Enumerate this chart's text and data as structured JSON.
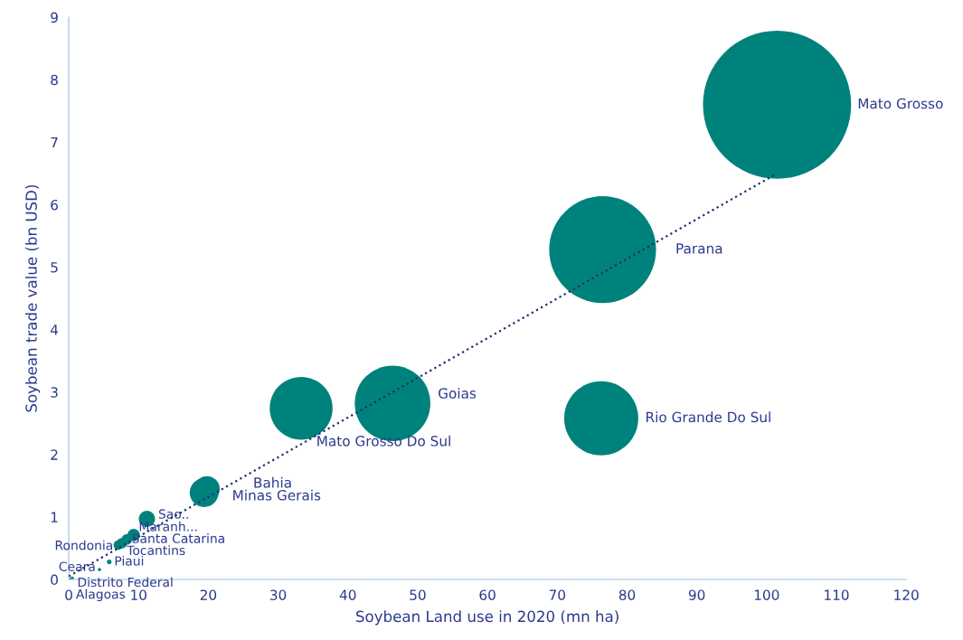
{
  "chart_data": {
    "type": "bubble",
    "xlabel": "Soybean Land use in 2020 (mn ha)",
    "ylabel": "Soybean trade value (bn USD)",
    "xlim": [
      0,
      120
    ],
    "xticks": [
      0,
      10,
      20,
      30,
      40,
      50,
      60,
      70,
      80,
      90,
      100,
      110,
      120
    ],
    "ylim": [
      0,
      9
    ],
    "yticks": [
      0,
      1,
      2,
      3,
      4,
      5,
      6,
      7,
      8,
      9
    ],
    "grid": false,
    "legend": false,
    "marker": "circle",
    "series": [
      {
        "name": "Mato Grosso",
        "color": "#00827c",
        "x": [
          101.5
        ],
        "values": [
          7.6
        ],
        "sizes": [
          1
        ]
      },
      {
        "name": "Parana",
        "color": "#00827c",
        "x": [
          76.5
        ],
        "values": [
          5.28
        ],
        "sizes": [
          0.52
        ]
      },
      {
        "name": "Rio Grande Do Sul",
        "color": "#00827c",
        "x": [
          76.3
        ],
        "values": [
          2.58
        ],
        "sizes": [
          0.25
        ]
      },
      {
        "name": "Goias",
        "color": "#00827c",
        "x": [
          46.4
        ],
        "values": [
          2.82
        ],
        "sizes": [
          0.26
        ]
      },
      {
        "name": "Mato Grosso Do Sul",
        "color": "#00827c",
        "x": [
          33.3
        ],
        "values": [
          2.74
        ],
        "sizes": [
          0.18
        ]
      },
      {
        "name": "Bahia",
        "color": "#00827c",
        "x": [
          19.4
        ],
        "values": [
          1.39
        ],
        "sizes": [
          0.038
        ]
      },
      {
        "name": "Minas Gerais",
        "color": "#00827c",
        "x": [
          19.8
        ],
        "values": [
          1.45
        ],
        "sizes": [
          0.03
        ]
      },
      {
        "name": "Sao..",
        "color": "#00827c",
        "x": [
          11.2
        ],
        "values": [
          0.97
        ],
        "sizes": [
          0.012
        ]
      },
      {
        "name": "Maranh...",
        "color": "#00827c",
        "x": [
          9.3
        ],
        "values": [
          0.71
        ],
        "sizes": [
          0.007
        ]
      },
      {
        "name": "Santa Catarina",
        "color": "#00827c",
        "x": [
          8.3
        ],
        "values": [
          0.64
        ],
        "sizes": [
          0.005
        ]
      },
      {
        "name": "Tocantins",
        "color": "#00827c",
        "x": [
          7.6
        ],
        "values": [
          0.58
        ],
        "sizes": [
          0.005
        ]
      },
      {
        "name": "Rondonia",
        "color": "#00827c",
        "x": [
          7.1
        ],
        "values": [
          0.55
        ],
        "sizes": [
          0.004
        ]
      },
      {
        "name": "Piaui",
        "color": "#00827c",
        "x": [
          5.8
        ],
        "values": [
          0.28
        ],
        "sizes": [
          0.001
        ]
      },
      {
        "name": "Ceara",
        "color": "#00827c",
        "x": [
          4.4
        ],
        "values": [
          0.16
        ],
        "sizes": [
          0.0005
        ]
      },
      {
        "name": "Distrito Federal",
        "color": "#00827c",
        "x": [
          0.5
        ],
        "values": [
          0.02
        ],
        "sizes": [
          0.0005
        ]
      },
      {
        "name": "Alagoas",
        "color": "#00827c",
        "x": [
          0.3
        ],
        "values": [
          0.01
        ],
        "sizes": [
          0.0003
        ]
      },
      {
        "type": "line",
        "color": "#1f2d6b",
        "line_style": "dotted",
        "marker": "none",
        "x": [
          0,
          101.5
        ],
        "values": [
          0.05,
          6.5
        ]
      }
    ]
  }
}
